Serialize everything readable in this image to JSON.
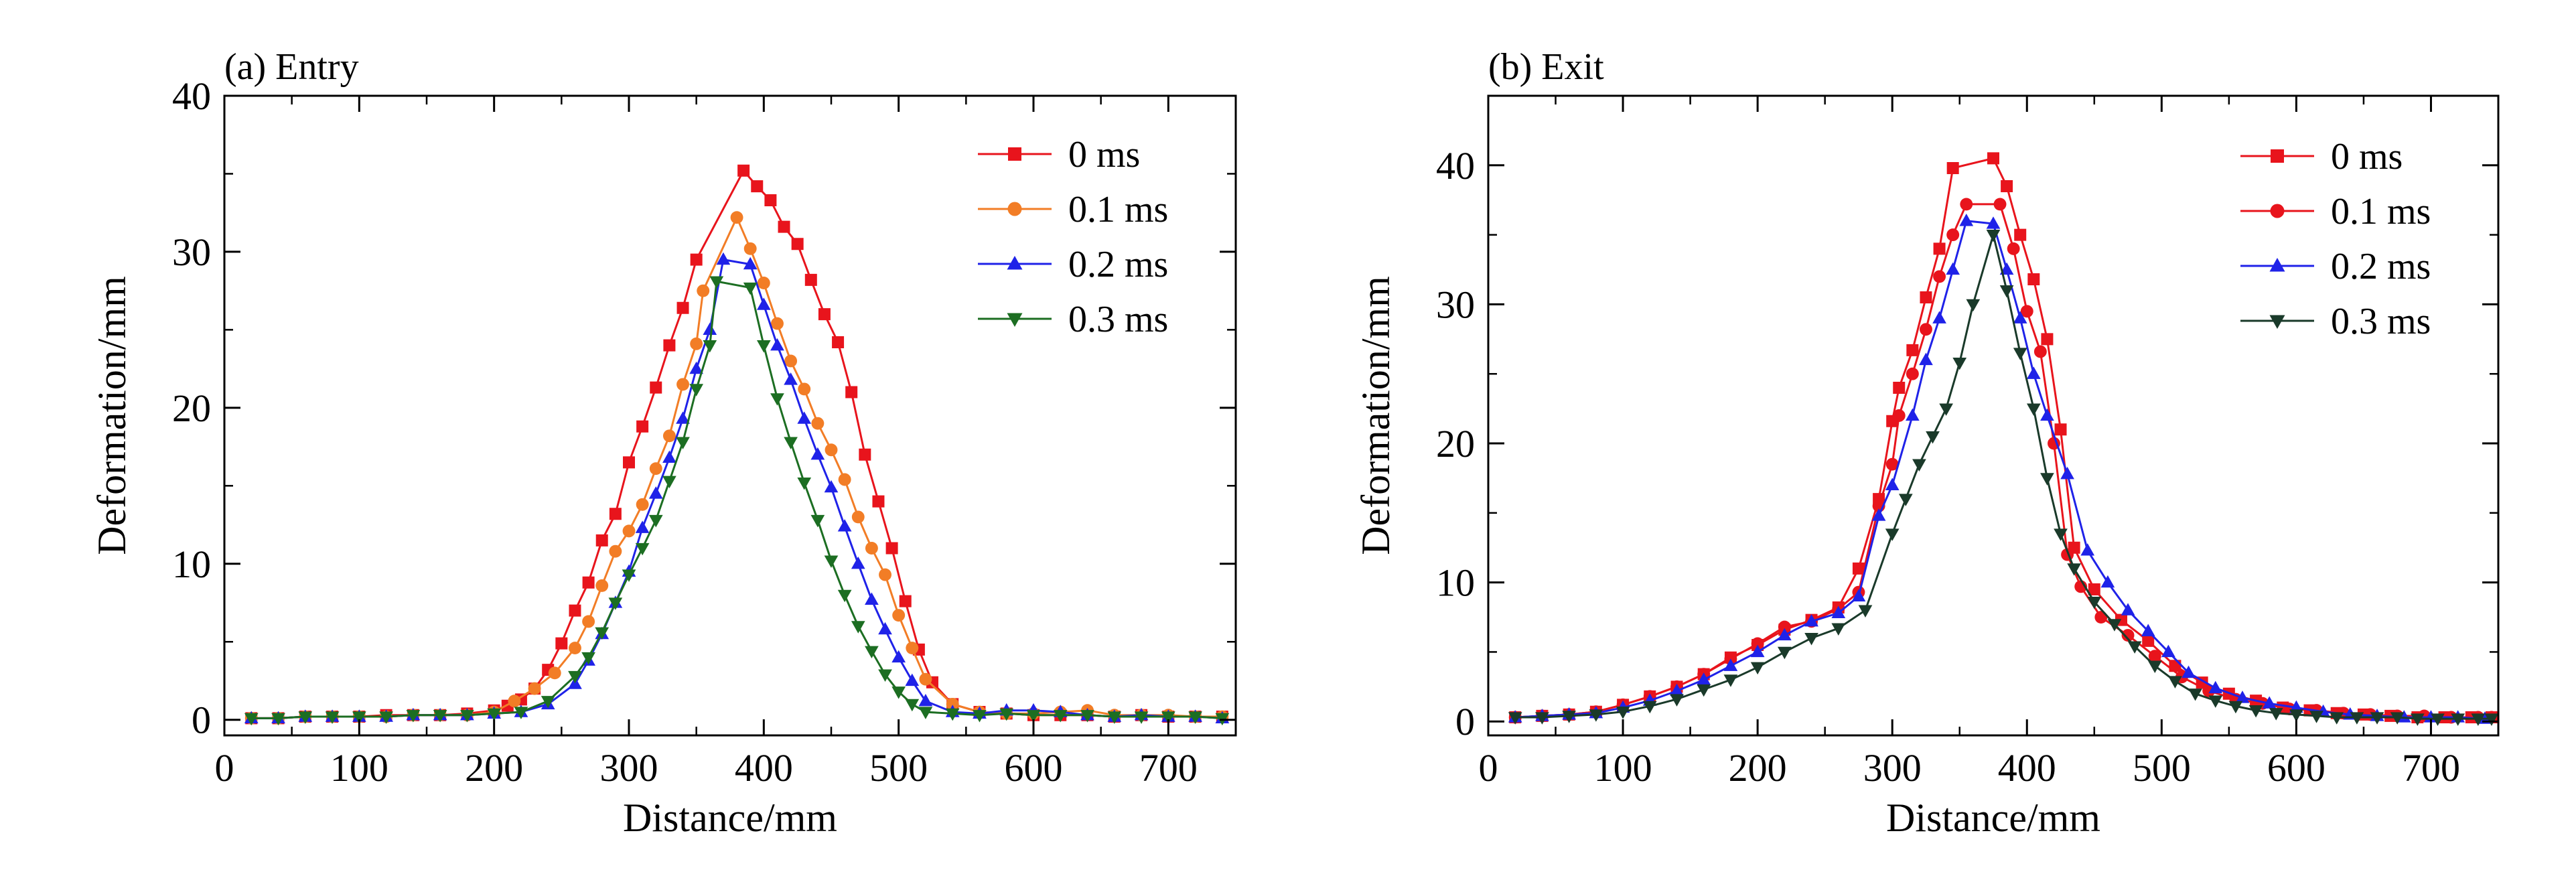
{
  "chart_data": [
    {
      "type": "line",
      "title": "(a) Entry",
      "xlabel": "Distance/mm",
      "ylabel": "Deformation/mm",
      "xlim": [
        0,
        750
      ],
      "ylim": [
        -1,
        40
      ],
      "xticks": [
        0,
        100,
        200,
        300,
        400,
        500,
        600,
        700
      ],
      "yticks": [
        0,
        10,
        20,
        30,
        40
      ],
      "grid": false,
      "legend": "top-right",
      "series": [
        {
          "name": "0 ms",
          "color": "#e8141c",
          "marker": "square",
          "x": [
            20,
            40,
            60,
            80,
            100,
            120,
            140,
            160,
            180,
            200,
            210,
            220,
            230,
            240,
            250,
            260,
            270,
            280,
            290,
            300,
            310,
            320,
            330,
            340,
            350,
            385,
            395,
            405,
            415,
            425,
            435,
            445,
            455,
            465,
            475,
            485,
            495,
            505,
            515,
            525,
            540,
            560,
            580,
            600,
            620,
            640,
            660,
            680,
            700,
            720,
            740
          ],
          "y": [
            0.1,
            0.1,
            0.2,
            0.2,
            0.2,
            0.3,
            0.3,
            0.3,
            0.4,
            0.6,
            0.9,
            1.3,
            2.0,
            3.2,
            4.9,
            7.0,
            8.8,
            11.5,
            13.2,
            16.5,
            18.8,
            21.3,
            24.0,
            26.4,
            29.5,
            35.2,
            34.2,
            33.3,
            31.6,
            30.5,
            28.2,
            26.0,
            24.2,
            21.0,
            17.0,
            14.0,
            11.0,
            7.6,
            4.5,
            2.4,
            1.0,
            0.5,
            0.4,
            0.3,
            0.3,
            0.3,
            0.2,
            0.3,
            0.2,
            0.2,
            0.2
          ]
        },
        {
          "name": "0.1 ms",
          "color": "#f27d26",
          "marker": "circle",
          "x": [
            20,
            40,
            60,
            80,
            100,
            120,
            140,
            160,
            180,
            200,
            215,
            230,
            245,
            260,
            270,
            280,
            290,
            300,
            310,
            320,
            330,
            340,
            350,
            355,
            380,
            390,
            400,
            410,
            420,
            430,
            440,
            450,
            460,
            470,
            480,
            490,
            500,
            510,
            520,
            540,
            560,
            580,
            600,
            620,
            640,
            660,
            680,
            700,
            720,
            740
          ],
          "y": [
            0.1,
            0.1,
            0.2,
            0.2,
            0.2,
            0.2,
            0.3,
            0.3,
            0.3,
            0.5,
            1.2,
            2.0,
            3.0,
            4.6,
            6.3,
            8.6,
            10.8,
            12.1,
            13.8,
            16.1,
            18.2,
            21.5,
            24.1,
            27.5,
            32.2,
            30.2,
            28.0,
            25.4,
            23.0,
            21.2,
            19.0,
            17.3,
            15.4,
            13.0,
            11.0,
            9.3,
            6.7,
            4.6,
            2.6,
            1.0,
            0.5,
            0.4,
            0.4,
            0.5,
            0.6,
            0.3,
            0.3,
            0.3,
            0.2,
            0.2
          ]
        },
        {
          "name": "0.2 ms",
          "color": "#1f22e8",
          "marker": "triangle-up",
          "x": [
            20,
            40,
            60,
            80,
            100,
            120,
            140,
            160,
            180,
            200,
            220,
            240,
            260,
            270,
            280,
            290,
            300,
            310,
            320,
            330,
            340,
            350,
            360,
            370,
            390,
            400,
            410,
            420,
            430,
            440,
            450,
            460,
            470,
            480,
            490,
            500,
            510,
            520,
            540,
            560,
            580,
            600,
            620,
            640,
            660,
            680,
            700,
            720,
            740
          ],
          "y": [
            0.1,
            0.1,
            0.2,
            0.2,
            0.2,
            0.2,
            0.3,
            0.3,
            0.3,
            0.4,
            0.5,
            1.0,
            2.3,
            3.8,
            5.5,
            7.5,
            9.5,
            12.3,
            14.5,
            16.8,
            19.3,
            22.5,
            25.0,
            29.5,
            29.2,
            26.6,
            24.0,
            21.8,
            19.3,
            17.0,
            14.9,
            12.4,
            10.0,
            7.7,
            5.8,
            4.0,
            2.5,
            1.2,
            0.5,
            0.4,
            0.6,
            0.6,
            0.5,
            0.3,
            0.2,
            0.3,
            0.2,
            0.2,
            0.1
          ]
        },
        {
          "name": "0.3 ms",
          "color": "#1c6e22",
          "marker": "triangle-down",
          "x": [
            20,
            40,
            60,
            80,
            100,
            120,
            140,
            160,
            180,
            200,
            220,
            240,
            260,
            270,
            280,
            290,
            300,
            310,
            320,
            330,
            340,
            350,
            360,
            365,
            390,
            400,
            410,
            420,
            430,
            440,
            450,
            460,
            470,
            480,
            490,
            500,
            510,
            520,
            540,
            560,
            580,
            600,
            620,
            640,
            660,
            680,
            700,
            720,
            740
          ],
          "y": [
            0.1,
            0.1,
            0.2,
            0.2,
            0.2,
            0.2,
            0.3,
            0.3,
            0.3,
            0.4,
            0.5,
            1.2,
            2.8,
            4.0,
            5.6,
            7.5,
            9.3,
            11.0,
            12.8,
            15.3,
            17.8,
            21.2,
            24.0,
            28.1,
            27.7,
            24.0,
            20.6,
            17.8,
            15.2,
            12.8,
            10.2,
            8.0,
            6.0,
            4.4,
            2.9,
            1.8,
            1.0,
            0.5,
            0.4,
            0.3,
            0.4,
            0.3,
            0.3,
            0.3,
            0.2,
            0.2,
            0.2,
            0.2,
            0.1
          ]
        }
      ]
    },
    {
      "type": "line",
      "title": "(b) Exit",
      "xlabel": "Distance/mm",
      "ylabel": "Deformation/mm",
      "xlim": [
        0,
        750
      ],
      "ylim": [
        -1,
        45
      ],
      "xticks": [
        0,
        100,
        200,
        300,
        400,
        500,
        600,
        700
      ],
      "yticks": [
        0,
        10,
        20,
        30,
        40
      ],
      "grid": false,
      "legend": "top-right",
      "series": [
        {
          "name": "0 ms",
          "color": "#e8141c",
          "marker": "square",
          "x": [
            20,
            40,
            60,
            80,
            100,
            120,
            140,
            160,
            180,
            200,
            220,
            240,
            260,
            275,
            290,
            300,
            305,
            315,
            325,
            335,
            345,
            375,
            385,
            395,
            405,
            415,
            425,
            435,
            450,
            470,
            490,
            510,
            530,
            550,
            570,
            590,
            610,
            630,
            650,
            670,
            690,
            710,
            730,
            745
          ],
          "y": [
            0.3,
            0.4,
            0.5,
            0.7,
            1.2,
            1.8,
            2.5,
            3.4,
            4.6,
            5.5,
            6.6,
            7.3,
            8.2,
            11.0,
            16.0,
            21.6,
            24.0,
            26.7,
            30.5,
            34.0,
            39.8,
            40.5,
            38.5,
            35.0,
            31.8,
            27.5,
            21.0,
            12.5,
            9.5,
            7.3,
            5.8,
            4.0,
            2.8,
            2.0,
            1.5,
            1.0,
            0.8,
            0.6,
            0.5,
            0.4,
            0.3,
            0.3,
            0.3,
            0.3
          ]
        },
        {
          "name": "0.1 ms",
          "color": "#e8141c",
          "marker": "circle",
          "x": [
            20,
            40,
            60,
            80,
            100,
            120,
            140,
            160,
            180,
            200,
            220,
            240,
            260,
            275,
            290,
            300,
            305,
            315,
            325,
            335,
            345,
            355,
            380,
            390,
            400,
            410,
            420,
            430,
            440,
            455,
            475,
            495,
            515,
            535,
            555,
            575,
            595,
            615,
            635,
            655,
            675,
            695,
            715,
            735,
            745
          ],
          "y": [
            0.3,
            0.4,
            0.5,
            0.7,
            1.2,
            1.8,
            2.5,
            3.4,
            4.5,
            5.6,
            6.8,
            7.2,
            8.1,
            9.3,
            15.5,
            18.5,
            22.0,
            25.0,
            28.2,
            32.0,
            35.0,
            37.2,
            37.2,
            34.0,
            29.5,
            26.6,
            20.0,
            12.0,
            9.7,
            7.5,
            6.2,
            4.7,
            3.2,
            2.2,
            1.6,
            1.3,
            0.9,
            0.8,
            0.6,
            0.5,
            0.4,
            0.4,
            0.3,
            0.3,
            0.3
          ]
        },
        {
          "name": "0.2 ms",
          "color": "#1f22e8",
          "marker": "triangle-up",
          "x": [
            20,
            40,
            60,
            80,
            100,
            120,
            140,
            160,
            180,
            200,
            220,
            240,
            260,
            275,
            290,
            300,
            315,
            325,
            335,
            345,
            355,
            375,
            385,
            395,
            405,
            415,
            430,
            445,
            460,
            475,
            490,
            505,
            520,
            540,
            560,
            580,
            600,
            620,
            640,
            660,
            680,
            700,
            720,
            740
          ],
          "y": [
            0.3,
            0.4,
            0.5,
            0.6,
            1.0,
            1.5,
            2.2,
            3.0,
            4.0,
            5.0,
            6.2,
            7.2,
            7.8,
            9.0,
            14.8,
            17.0,
            22.0,
            26.0,
            29.0,
            32.5,
            36.0,
            35.8,
            32.5,
            29.0,
            25.0,
            22.0,
            17.8,
            12.3,
            10.0,
            8.0,
            6.5,
            5.0,
            3.5,
            2.4,
            1.7,
            1.3,
            1.0,
            0.7,
            0.5,
            0.4,
            0.3,
            0.3,
            0.3,
            0.2
          ]
        },
        {
          "name": "0.3 ms",
          "color": "#1a3a2a",
          "marker": "triangle-down",
          "x": [
            20,
            40,
            60,
            80,
            100,
            120,
            140,
            160,
            180,
            200,
            220,
            240,
            260,
            280,
            300,
            310,
            320,
            330,
            340,
            350,
            360,
            375,
            385,
            395,
            405,
            415,
            425,
            435,
            450,
            465,
            480,
            495,
            510,
            525,
            540,
            555,
            570,
            585,
            600,
            615,
            630,
            645,
            660,
            675,
            690,
            705,
            720,
            735,
            745
          ],
          "y": [
            0.3,
            0.3,
            0.4,
            0.5,
            0.7,
            1.1,
            1.6,
            2.3,
            3.0,
            3.9,
            5.0,
            6.0,
            6.7,
            8.0,
            13.5,
            16.0,
            18.5,
            20.5,
            22.5,
            25.8,
            30.0,
            35.0,
            31.0,
            26.5,
            22.5,
            17.5,
            13.5,
            11.0,
            8.6,
            7.0,
            5.4,
            4.0,
            2.9,
            2.0,
            1.5,
            1.1,
            0.8,
            0.6,
            0.5,
            0.4,
            0.3,
            0.3,
            0.3,
            0.3,
            0.2,
            0.2,
            0.2,
            0.2,
            0.2
          ]
        }
      ]
    }
  ]
}
